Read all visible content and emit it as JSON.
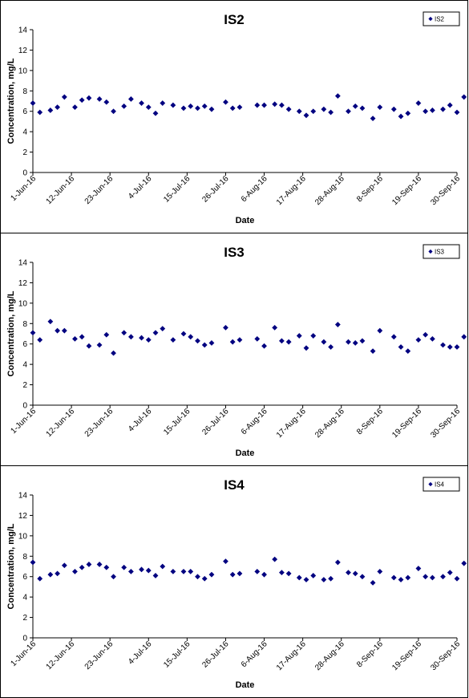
{
  "chart_data": [
    {
      "type": "scatter",
      "title": "IS2",
      "xlabel": "Date",
      "ylabel": "Concentration, mg/L",
      "ylim": [
        0,
        14
      ],
      "yticks": [
        "0",
        "2",
        "4",
        "6",
        "8",
        "10",
        "12",
        "14"
      ],
      "xlim": [
        "2016-06-01",
        "2016-09-30"
      ],
      "xticks": [
        "1-Jun-16",
        "12-Jun-16",
        "23-Jun-16",
        "4-Jul-16",
        "15-Jul-16",
        "26-Jul-16",
        "6-Aug-16",
        "17-Aug-16",
        "28-Aug-16",
        "8-Sep-16",
        "19-Sep-16",
        "30-Sep-16"
      ],
      "grid": false,
      "legend": "top-right",
      "marker_color": "#000080",
      "series": [
        {
          "name": "IS2",
          "points": [
            {
              "x": "2016-06-01",
              "y": 6.8
            },
            {
              "x": "2016-06-03",
              "y": 5.9
            },
            {
              "x": "2016-06-06",
              "y": 6.1
            },
            {
              "x": "2016-06-08",
              "y": 6.4
            },
            {
              "x": "2016-06-10",
              "y": 7.4
            },
            {
              "x": "2016-06-13",
              "y": 6.4
            },
            {
              "x": "2016-06-15",
              "y": 7.1
            },
            {
              "x": "2016-06-17",
              "y": 7.3
            },
            {
              "x": "2016-06-20",
              "y": 7.2
            },
            {
              "x": "2016-06-22",
              "y": 6.9
            },
            {
              "x": "2016-06-24",
              "y": 6.0
            },
            {
              "x": "2016-06-27",
              "y": 6.5
            },
            {
              "x": "2016-06-29",
              "y": 7.2
            },
            {
              "x": "2016-07-02",
              "y": 6.8
            },
            {
              "x": "2016-07-04",
              "y": 6.4
            },
            {
              "x": "2016-07-06",
              "y": 5.8
            },
            {
              "x": "2016-07-08",
              "y": 6.8
            },
            {
              "x": "2016-07-11",
              "y": 6.6
            },
            {
              "x": "2016-07-14",
              "y": 6.3
            },
            {
              "x": "2016-07-16",
              "y": 6.5
            },
            {
              "x": "2016-07-18",
              "y": 6.3
            },
            {
              "x": "2016-07-20",
              "y": 6.5
            },
            {
              "x": "2016-07-22",
              "y": 6.2
            },
            {
              "x": "2016-07-26",
              "y": 6.9
            },
            {
              "x": "2016-07-28",
              "y": 6.3
            },
            {
              "x": "2016-07-30",
              "y": 6.4
            },
            {
              "x": "2016-08-04",
              "y": 6.6
            },
            {
              "x": "2016-08-06",
              "y": 6.6
            },
            {
              "x": "2016-08-09",
              "y": 6.7
            },
            {
              "x": "2016-08-11",
              "y": 6.6
            },
            {
              "x": "2016-08-13",
              "y": 6.2
            },
            {
              "x": "2016-08-16",
              "y": 6.0
            },
            {
              "x": "2016-08-18",
              "y": 5.6
            },
            {
              "x": "2016-08-20",
              "y": 6.0
            },
            {
              "x": "2016-08-23",
              "y": 6.2
            },
            {
              "x": "2016-08-25",
              "y": 5.9
            },
            {
              "x": "2016-08-27",
              "y": 7.5
            },
            {
              "x": "2016-08-30",
              "y": 6.0
            },
            {
              "x": "2016-09-01",
              "y": 6.5
            },
            {
              "x": "2016-09-03",
              "y": 6.3
            },
            {
              "x": "2016-09-06",
              "y": 5.3
            },
            {
              "x": "2016-09-08",
              "y": 6.4
            },
            {
              "x": "2016-09-12",
              "y": 6.2
            },
            {
              "x": "2016-09-14",
              "y": 5.5
            },
            {
              "x": "2016-09-16",
              "y": 5.8
            },
            {
              "x": "2016-09-19",
              "y": 6.8
            },
            {
              "x": "2016-09-21",
              "y": 6.0
            },
            {
              "x": "2016-09-23",
              "y": 6.1
            },
            {
              "x": "2016-09-26",
              "y": 6.2
            },
            {
              "x": "2016-09-28",
              "y": 6.6
            },
            {
              "x": "2016-09-30",
              "y": 5.9
            },
            {
              "x": "2016-10-02",
              "y": 7.4
            }
          ]
        }
      ]
    },
    {
      "type": "scatter",
      "title": "IS3",
      "xlabel": "Date",
      "ylabel": "Concentration, mg/L",
      "ylim": [
        0,
        14
      ],
      "yticks": [
        "0",
        "2",
        "4",
        "6",
        "8",
        "10",
        "12",
        "14"
      ],
      "xlim": [
        "2016-06-01",
        "2016-09-30"
      ],
      "xticks": [
        "1-Jun-16",
        "12-Jun-16",
        "23-Jun-16",
        "4-Jul-16",
        "15-Jul-16",
        "26-Jul-16",
        "6-Aug-16",
        "17-Aug-16",
        "28-Aug-16",
        "8-Sep-16",
        "19-Sep-16",
        "30-Sep-16"
      ],
      "grid": false,
      "legend": "top-right",
      "marker_color": "#000080",
      "series": [
        {
          "name": "IS3",
          "points": [
            {
              "x": "2016-06-01",
              "y": 7.1
            },
            {
              "x": "2016-06-03",
              "y": 6.4
            },
            {
              "x": "2016-06-06",
              "y": 8.2
            },
            {
              "x": "2016-06-08",
              "y": 7.3
            },
            {
              "x": "2016-06-10",
              "y": 7.3
            },
            {
              "x": "2016-06-13",
              "y": 6.5
            },
            {
              "x": "2016-06-15",
              "y": 6.7
            },
            {
              "x": "2016-06-17",
              "y": 5.8
            },
            {
              "x": "2016-06-20",
              "y": 5.9
            },
            {
              "x": "2016-06-22",
              "y": 6.9
            },
            {
              "x": "2016-06-24",
              "y": 5.1
            },
            {
              "x": "2016-06-27",
              "y": 7.1
            },
            {
              "x": "2016-06-29",
              "y": 6.7
            },
            {
              "x": "2016-07-02",
              "y": 6.6
            },
            {
              "x": "2016-07-04",
              "y": 6.4
            },
            {
              "x": "2016-07-06",
              "y": 7.1
            },
            {
              "x": "2016-07-08",
              "y": 7.5
            },
            {
              "x": "2016-07-11",
              "y": 6.4
            },
            {
              "x": "2016-07-14",
              "y": 7.0
            },
            {
              "x": "2016-07-16",
              "y": 6.7
            },
            {
              "x": "2016-07-18",
              "y": 6.3
            },
            {
              "x": "2016-07-20",
              "y": 5.9
            },
            {
              "x": "2016-07-22",
              "y": 6.1
            },
            {
              "x": "2016-07-26",
              "y": 7.6
            },
            {
              "x": "2016-07-28",
              "y": 6.2
            },
            {
              "x": "2016-07-30",
              "y": 6.4
            },
            {
              "x": "2016-08-04",
              "y": 6.5
            },
            {
              "x": "2016-08-06",
              "y": 5.8
            },
            {
              "x": "2016-08-09",
              "y": 7.6
            },
            {
              "x": "2016-08-11",
              "y": 6.3
            },
            {
              "x": "2016-08-13",
              "y": 6.2
            },
            {
              "x": "2016-08-16",
              "y": 6.8
            },
            {
              "x": "2016-08-18",
              "y": 5.6
            },
            {
              "x": "2016-08-20",
              "y": 6.8
            },
            {
              "x": "2016-08-23",
              "y": 6.2
            },
            {
              "x": "2016-08-25",
              "y": 5.7
            },
            {
              "x": "2016-08-27",
              "y": 7.9
            },
            {
              "x": "2016-08-30",
              "y": 6.2
            },
            {
              "x": "2016-09-01",
              "y": 6.1
            },
            {
              "x": "2016-09-03",
              "y": 6.3
            },
            {
              "x": "2016-09-06",
              "y": 5.3
            },
            {
              "x": "2016-09-08",
              "y": 7.3
            },
            {
              "x": "2016-09-12",
              "y": 6.7
            },
            {
              "x": "2016-09-14",
              "y": 5.7
            },
            {
              "x": "2016-09-16",
              "y": 5.3
            },
            {
              "x": "2016-09-19",
              "y": 6.4
            },
            {
              "x": "2016-09-21",
              "y": 6.9
            },
            {
              "x": "2016-09-23",
              "y": 6.5
            },
            {
              "x": "2016-09-26",
              "y": 5.9
            },
            {
              "x": "2016-09-28",
              "y": 5.7
            },
            {
              "x": "2016-09-30",
              "y": 5.7
            },
            {
              "x": "2016-10-02",
              "y": 6.7
            }
          ]
        }
      ]
    },
    {
      "type": "scatter",
      "title": "IS4",
      "xlabel": "Date",
      "ylabel": "Concentration, mg/L",
      "ylim": [
        0,
        14
      ],
      "yticks": [
        "0",
        "2",
        "4",
        "6",
        "8",
        "10",
        "12",
        "14"
      ],
      "xlim": [
        "2016-06-01",
        "2016-09-30"
      ],
      "xticks": [
        "1-Jun-16",
        "12-Jun-16",
        "23-Jun-16",
        "4-Jul-16",
        "15-Jul-16",
        "26-Jul-16",
        "6-Aug-16",
        "17-Aug-16",
        "28-Aug-16",
        "8-Sep-16",
        "19-Sep-16",
        "30-Sep-16"
      ],
      "grid": false,
      "legend": "top-right",
      "marker_color": "#000080",
      "series": [
        {
          "name": "IS4",
          "points": [
            {
              "x": "2016-06-01",
              "y": 7.4
            },
            {
              "x": "2016-06-03",
              "y": 5.8
            },
            {
              "x": "2016-06-06",
              "y": 6.2
            },
            {
              "x": "2016-06-08",
              "y": 6.3
            },
            {
              "x": "2016-06-10",
              "y": 7.1
            },
            {
              "x": "2016-06-13",
              "y": 6.5
            },
            {
              "x": "2016-06-15",
              "y": 6.9
            },
            {
              "x": "2016-06-17",
              "y": 7.2
            },
            {
              "x": "2016-06-20",
              "y": 7.2
            },
            {
              "x": "2016-06-22",
              "y": 6.9
            },
            {
              "x": "2016-06-24",
              "y": 6.0
            },
            {
              "x": "2016-06-27",
              "y": 6.9
            },
            {
              "x": "2016-06-29",
              "y": 6.5
            },
            {
              "x": "2016-07-02",
              "y": 6.7
            },
            {
              "x": "2016-07-04",
              "y": 6.6
            },
            {
              "x": "2016-07-06",
              "y": 6.1
            },
            {
              "x": "2016-07-08",
              "y": 7.0
            },
            {
              "x": "2016-07-11",
              "y": 6.5
            },
            {
              "x": "2016-07-14",
              "y": 6.5
            },
            {
              "x": "2016-07-16",
              "y": 6.5
            },
            {
              "x": "2016-07-18",
              "y": 6.0
            },
            {
              "x": "2016-07-20",
              "y": 5.8
            },
            {
              "x": "2016-07-22",
              "y": 6.2
            },
            {
              "x": "2016-07-26",
              "y": 7.5
            },
            {
              "x": "2016-07-28",
              "y": 6.2
            },
            {
              "x": "2016-07-30",
              "y": 6.3
            },
            {
              "x": "2016-08-04",
              "y": 6.5
            },
            {
              "x": "2016-08-06",
              "y": 6.2
            },
            {
              "x": "2016-08-09",
              "y": 7.7
            },
            {
              "x": "2016-08-11",
              "y": 6.4
            },
            {
              "x": "2016-08-13",
              "y": 6.3
            },
            {
              "x": "2016-08-16",
              "y": 5.9
            },
            {
              "x": "2016-08-18",
              "y": 5.7
            },
            {
              "x": "2016-08-20",
              "y": 6.1
            },
            {
              "x": "2016-08-23",
              "y": 5.7
            },
            {
              "x": "2016-08-25",
              "y": 5.8
            },
            {
              "x": "2016-08-27",
              "y": 7.4
            },
            {
              "x": "2016-08-30",
              "y": 6.4
            },
            {
              "x": "2016-09-01",
              "y": 6.3
            },
            {
              "x": "2016-09-03",
              "y": 6.0
            },
            {
              "x": "2016-09-06",
              "y": 5.4
            },
            {
              "x": "2016-09-08",
              "y": 6.5
            },
            {
              "x": "2016-09-12",
              "y": 5.9
            },
            {
              "x": "2016-09-14",
              "y": 5.7
            },
            {
              "x": "2016-09-16",
              "y": 5.9
            },
            {
              "x": "2016-09-19",
              "y": 6.8
            },
            {
              "x": "2016-09-21",
              "y": 6.0
            },
            {
              "x": "2016-09-23",
              "y": 5.9
            },
            {
              "x": "2016-09-26",
              "y": 6.0
            },
            {
              "x": "2016-09-28",
              "y": 6.4
            },
            {
              "x": "2016-09-30",
              "y": 5.8
            },
            {
              "x": "2016-10-02",
              "y": 7.3
            }
          ]
        }
      ]
    }
  ]
}
